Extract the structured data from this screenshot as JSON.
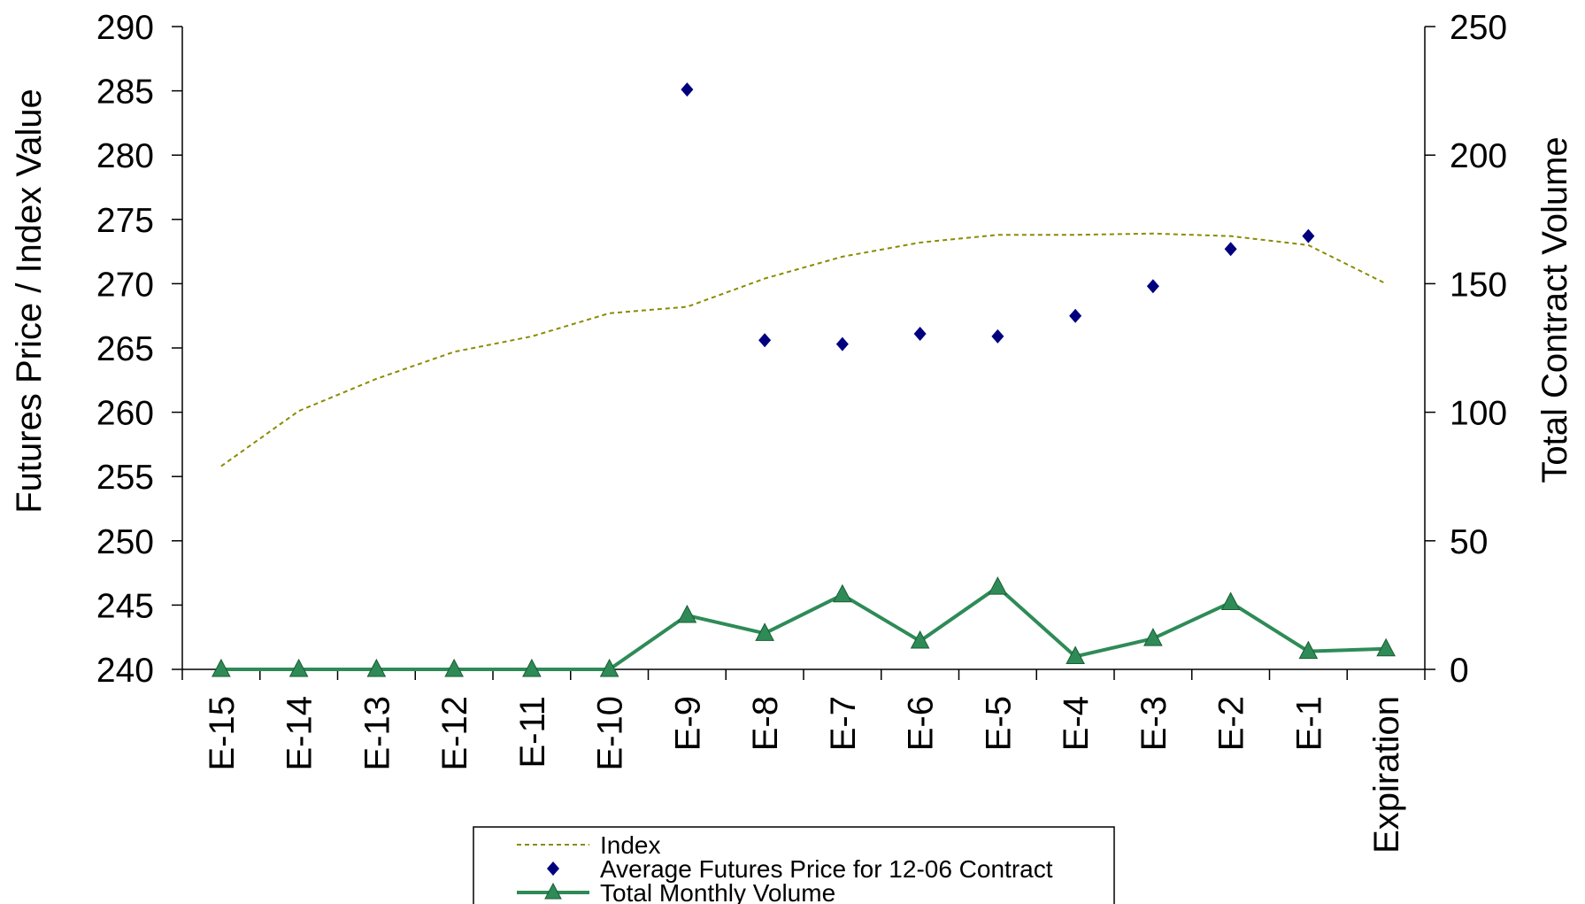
{
  "chart_data": {
    "type": "line",
    "categories": [
      "E-15",
      "E-14",
      "E-13",
      "E-12",
      "E-11",
      "E-10",
      "E-9",
      "E-8",
      "E-7",
      "E-6",
      "E-5",
      "E-4",
      "E-3",
      "E-2",
      "E-1",
      "Expiration"
    ],
    "y_left": {
      "label": "Futures Price / Index Value",
      "range": [
        240,
        290
      ],
      "ticks": [
        240,
        245,
        250,
        255,
        260,
        265,
        270,
        275,
        280,
        285,
        290
      ]
    },
    "y_right": {
      "label": "Total Contract Volume",
      "range": [
        0,
        250
      ],
      "ticks": [
        0,
        50,
        100,
        150,
        200,
        250
      ]
    },
    "series": [
      {
        "name": "Index",
        "type": "line",
        "axis": "left",
        "style": "dashed",
        "color": "#8B8B00",
        "values": [
          255.8,
          260.1,
          262.6,
          264.7,
          265.9,
          267.7,
          268.2,
          270.4,
          272.1,
          273.2,
          273.8,
          273.8,
          273.9,
          273.7,
          273.0,
          270.0
        ]
      },
      {
        "name": "Average Futures Price for 12-06 Contract",
        "type": "scatter",
        "axis": "left",
        "marker": "diamond",
        "color": "#00007F",
        "values": [
          null,
          null,
          null,
          null,
          null,
          null,
          285.1,
          265.6,
          265.3,
          266.1,
          265.9,
          267.5,
          269.8,
          272.7,
          273.7,
          null
        ]
      },
      {
        "name": "Total Monthly Volume",
        "type": "line",
        "axis": "right",
        "marker": "triangle",
        "color": "#2E8B57",
        "values": [
          0,
          0,
          0,
          0,
          0,
          0,
          21,
          14,
          29,
          11,
          32,
          5,
          12,
          26,
          7,
          8
        ]
      }
    ],
    "legend_position": "bottom-center",
    "grid": false
  }
}
